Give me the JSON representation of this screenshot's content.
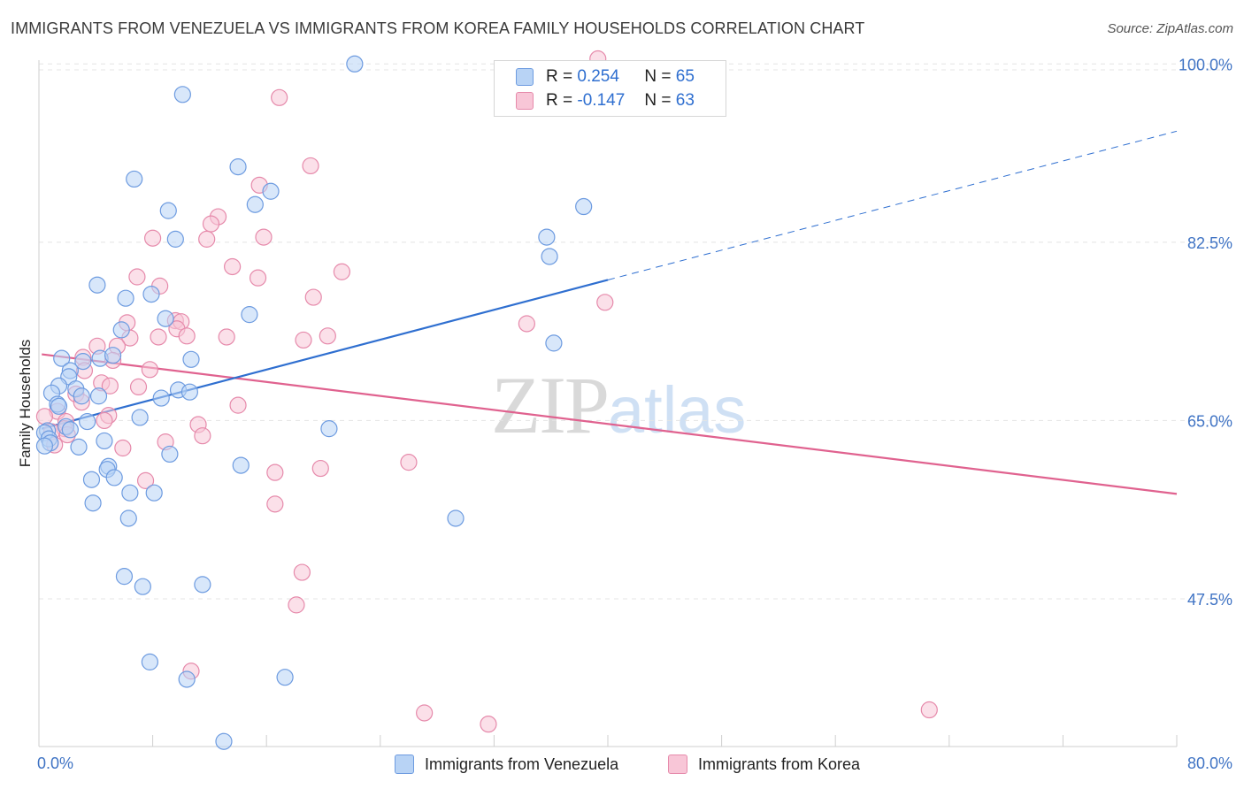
{
  "header": {
    "title": "IMMIGRANTS FROM VENEZUELA VS IMMIGRANTS FROM KOREA FAMILY HOUSEHOLDS CORRELATION CHART",
    "source": "Source: ZipAtlas.com"
  },
  "legend": {
    "r_label": "R =",
    "n_label": "N =",
    "venezuela": {
      "r": "0.254",
      "n": "65"
    },
    "korea": {
      "r": "-0.147",
      "n": "63"
    }
  },
  "bottom_legend": {
    "venezuela": "Immigrants from Venezuela",
    "korea": "Immigrants from Korea"
  },
  "watermark": {
    "zip": "ZIP",
    "atlas": "atlas"
  },
  "colors": {
    "venezuela_fill": "#b8d3f5",
    "venezuela_stroke": "#6d9be0",
    "venezuela_line": "#2f6fd0",
    "korea_fill": "#f8c6d7",
    "korea_stroke": "#e68aab",
    "korea_line": "#e0628f",
    "tick_text": "#3f73c4",
    "grid": "#e4e4e4"
  },
  "chart_data": {
    "type": "scatter",
    "title": "IMMIGRANTS FROM VENEZUELA VS IMMIGRANTS FROM KOREA FAMILY HOUSEHOLDS CORRELATION CHART",
    "xlabel": "",
    "ylabel": "Family Households",
    "xlim": [
      0,
      80
    ],
    "ylim": [
      33,
      101.5
    ],
    "x_tick_labels": [
      "0.0%",
      "80.0%"
    ],
    "y_ticks": [
      47.5,
      65.0,
      82.5,
      100.0
    ],
    "y_tick_labels": [
      "47.5%",
      "65.0%",
      "82.5%",
      "100.0%"
    ],
    "grid": true,
    "legend_position": "top-center",
    "series": [
      {
        "name": "Immigrants from Venezuela",
        "r": 0.254,
        "n": 65,
        "trend": {
          "x": [
            0.2,
            40.0
          ],
          "y": [
            64.2,
            78.8
          ],
          "dashed_to": [
            80.0,
            93.4
          ]
        },
        "points": [
          [
            22.2,
            100.0
          ],
          [
            10.1,
            97.0
          ],
          [
            6.7,
            88.7
          ],
          [
            14.0,
            89.9
          ],
          [
            16.3,
            87.5
          ],
          [
            15.2,
            86.2
          ],
          [
            38.3,
            86.0
          ],
          [
            9.1,
            85.6
          ],
          [
            9.6,
            82.8
          ],
          [
            35.7,
            83.0
          ],
          [
            35.9,
            81.1
          ],
          [
            4.1,
            78.3
          ],
          [
            7.9,
            77.4
          ],
          [
            6.1,
            77.0
          ],
          [
            8.9,
            75.0
          ],
          [
            14.8,
            75.4
          ],
          [
            5.8,
            73.9
          ],
          [
            36.2,
            72.6
          ],
          [
            1.6,
            71.1
          ],
          [
            4.3,
            71.1
          ],
          [
            5.2,
            71.4
          ],
          [
            10.7,
            71.0
          ],
          [
            3.1,
            70.8
          ],
          [
            2.2,
            69.9
          ],
          [
            2.1,
            69.3
          ],
          [
            1.4,
            68.4
          ],
          [
            2.6,
            68.1
          ],
          [
            9.8,
            68.0
          ],
          [
            10.6,
            67.8
          ],
          [
            0.9,
            67.7
          ],
          [
            3.0,
            67.4
          ],
          [
            4.2,
            67.4
          ],
          [
            8.6,
            67.2
          ],
          [
            1.3,
            66.6
          ],
          [
            1.4,
            66.4
          ],
          [
            7.1,
            65.3
          ],
          [
            3.4,
            64.9
          ],
          [
            1.9,
            64.4
          ],
          [
            2.2,
            64.1
          ],
          [
            20.4,
            64.2
          ],
          [
            0.6,
            64.0
          ],
          [
            0.4,
            63.8
          ],
          [
            0.7,
            63.2
          ],
          [
            0.8,
            62.8
          ],
          [
            0.4,
            62.5
          ],
          [
            4.6,
            63.0
          ],
          [
            2.8,
            62.4
          ],
          [
            9.2,
            61.7
          ],
          [
            14.2,
            60.6
          ],
          [
            4.9,
            60.5
          ],
          [
            4.8,
            60.2
          ],
          [
            5.3,
            59.4
          ],
          [
            3.7,
            59.2
          ],
          [
            6.4,
            57.9
          ],
          [
            8.1,
            57.9
          ],
          [
            3.8,
            56.9
          ],
          [
            6.3,
            55.4
          ],
          [
            29.3,
            55.4
          ],
          [
            6.0,
            49.7
          ],
          [
            7.3,
            48.7
          ],
          [
            11.5,
            48.9
          ],
          [
            7.8,
            41.3
          ],
          [
            10.4,
            39.6
          ],
          [
            17.3,
            39.8
          ],
          [
            13.0,
            33.5
          ]
        ]
      },
      {
        "name": "Immigrants from Korea",
        "r": -0.147,
        "n": 63,
        "trend": {
          "x": [
            0.2,
            80.0
          ],
          "y": [
            71.5,
            57.8
          ]
        },
        "points": [
          [
            39.3,
            100.5
          ],
          [
            16.9,
            96.7
          ],
          [
            19.1,
            90.0
          ],
          [
            15.5,
            88.1
          ],
          [
            12.6,
            85.0
          ],
          [
            12.1,
            84.3
          ],
          [
            8.0,
            82.9
          ],
          [
            11.8,
            82.8
          ],
          [
            15.8,
            83.0
          ],
          [
            13.6,
            80.1
          ],
          [
            6.9,
            79.1
          ],
          [
            15.4,
            79.0
          ],
          [
            21.3,
            79.6
          ],
          [
            8.5,
            78.2
          ],
          [
            19.3,
            77.1
          ],
          [
            39.8,
            76.6
          ],
          [
            6.2,
            74.6
          ],
          [
            9.6,
            74.8
          ],
          [
            10.0,
            74.7
          ],
          [
            34.3,
            74.5
          ],
          [
            9.7,
            74.0
          ],
          [
            10.4,
            73.3
          ],
          [
            8.4,
            73.2
          ],
          [
            13.2,
            73.2
          ],
          [
            6.4,
            73.1
          ],
          [
            18.6,
            72.9
          ],
          [
            20.3,
            73.3
          ],
          [
            4.1,
            72.3
          ],
          [
            5.5,
            72.3
          ],
          [
            3.1,
            71.2
          ],
          [
            5.2,
            70.9
          ],
          [
            3.2,
            69.9
          ],
          [
            7.8,
            70.0
          ],
          [
            4.4,
            68.7
          ],
          [
            5.0,
            68.4
          ],
          [
            7.0,
            68.3
          ],
          [
            2.6,
            67.6
          ],
          [
            3.0,
            66.8
          ],
          [
            14.0,
            66.5
          ],
          [
            1.3,
            65.9
          ],
          [
            0.4,
            65.4
          ],
          [
            4.9,
            65.5
          ],
          [
            4.6,
            65.0
          ],
          [
            1.9,
            64.9
          ],
          [
            11.2,
            64.6
          ],
          [
            1.8,
            64.2
          ],
          [
            0.9,
            63.9
          ],
          [
            2.0,
            63.6
          ],
          [
            11.5,
            63.5
          ],
          [
            8.9,
            62.9
          ],
          [
            5.9,
            62.3
          ],
          [
            1.1,
            62.6
          ],
          [
            26.0,
            60.9
          ],
          [
            19.8,
            60.3
          ],
          [
            16.6,
            59.9
          ],
          [
            7.5,
            59.1
          ],
          [
            16.6,
            56.8
          ],
          [
            18.5,
            50.1
          ],
          [
            18.1,
            46.9
          ],
          [
            10.7,
            40.4
          ],
          [
            27.1,
            36.3
          ],
          [
            31.6,
            35.2
          ],
          [
            62.6,
            36.6
          ]
        ]
      }
    ]
  }
}
